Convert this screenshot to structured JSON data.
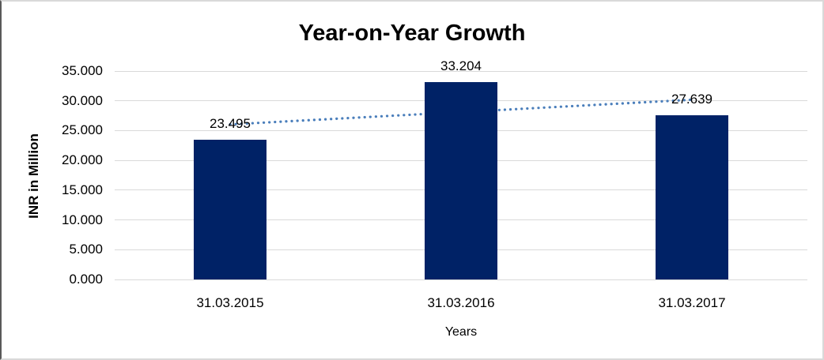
{
  "chart_data": {
    "type": "bar",
    "title": "Year-on-Year Growth",
    "xlabel": "Years",
    "ylabel": "INR in Million",
    "categories": [
      "31.03.2015",
      "31.03.2016",
      "31.03.2017"
    ],
    "values": [
      23.495,
      33.204,
      27.639
    ],
    "data_labels": [
      "23.495",
      "33.204",
      "27.639"
    ],
    "ylim": [
      0,
      35
    ],
    "ytick_step": 5,
    "ytick_labels": [
      "0.000",
      "5.000",
      "10.000",
      "15.000",
      "20.000",
      "25.000",
      "30.000",
      "35.000"
    ],
    "grid": "horizontal",
    "legend": "none",
    "bar_color": "#002266",
    "gridline_color": "#d9d9d9",
    "trendline": {
      "type": "linear",
      "style": "dotted",
      "color": "#4a7ebb"
    }
  }
}
